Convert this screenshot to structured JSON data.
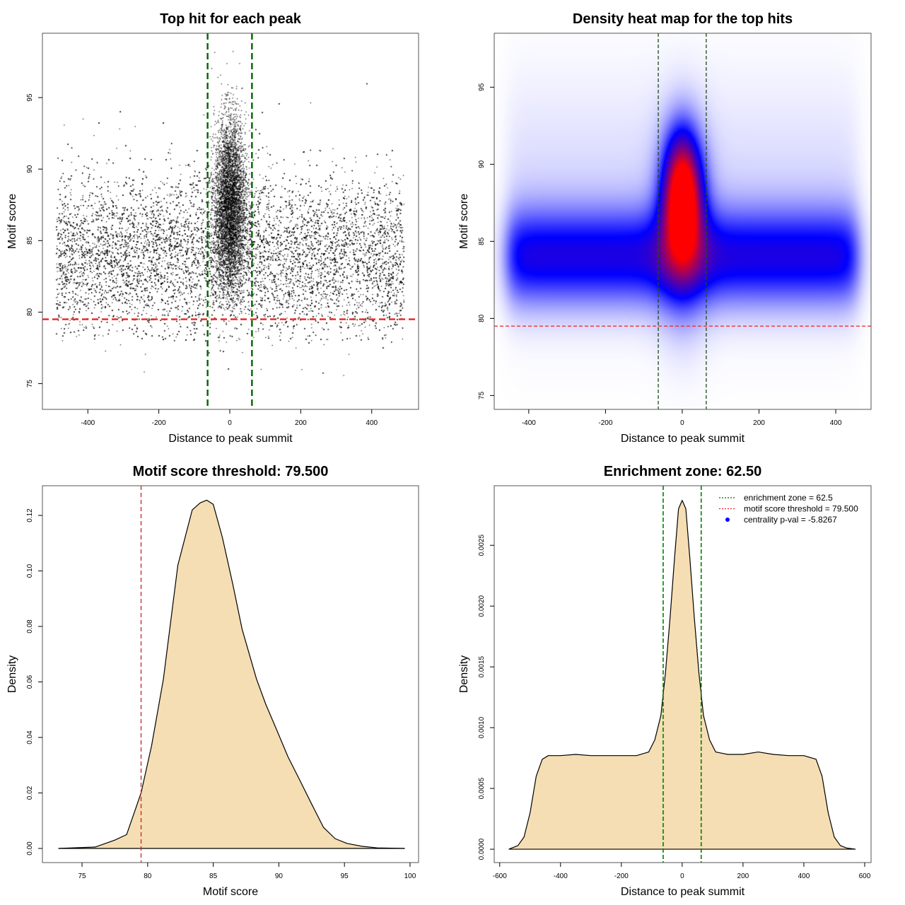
{
  "chart_data": [
    {
      "type": "scatter",
      "title": "Top hit for each peak",
      "xlabel": "Distance to peak summit",
      "ylabel": "Motif score",
      "xlim": [
        -528,
        532
      ],
      "ylim": [
        73.2,
        99.5
      ],
      "xticks": [
        "-400",
        "-200",
        "0",
        "200",
        "400"
      ],
      "xtick_values": [
        -400,
        -200,
        0,
        200,
        400
      ],
      "yticks": [
        "75",
        "80",
        "85",
        "90",
        "95"
      ],
      "ytick_values": [
        75,
        80,
        85,
        90,
        95
      ],
      "vlines": [
        -62.5,
        62.5
      ],
      "hline": 79.5,
      "point_distribution": {
        "background": {
          "n": 16000,
          "x_uniform": [
            -490,
            490
          ],
          "y_mean": 84,
          "y_sd": 2.8,
          "y_min": 75
        },
        "central": {
          "n": 5000,
          "x_mean": 0,
          "x_sd": 22,
          "y_mean": 87.5,
          "y_sd": 3.0
        }
      },
      "colors": {
        "points": "#000000",
        "vlines": "#006400",
        "hline": "#ee2222"
      }
    },
    {
      "type": "heatmap",
      "title": "Density heat map for the top hits",
      "xlabel": "Distance to peak summit",
      "ylabel": "Motif score",
      "xlim": [
        -490,
        492
      ],
      "ylim": [
        74.1,
        98.5
      ],
      "xticks": [
        "-400",
        "-200",
        "0",
        "200",
        "400"
      ],
      "xtick_values": [
        -400,
        -200,
        0,
        200,
        400
      ],
      "yticks": [
        "75",
        "80",
        "85",
        "90",
        "95"
      ],
      "ytick_values": [
        75,
        80,
        85,
        90,
        95
      ],
      "vlines": [
        -62.5,
        62.5
      ],
      "hline": 79.5,
      "colormap": [
        "#ffffff",
        "#0000ff",
        "#ff0000"
      ],
      "colors": {
        "vlines": "#1a4d1a",
        "hline": "#ee2222"
      }
    },
    {
      "type": "area",
      "title": "Motif score threshold: 79.500",
      "xlabel": "Motif score",
      "ylabel": "Density",
      "xlim": [
        71.98,
        100.65
      ],
      "ylim": [
        -0.0051,
        0.1307
      ],
      "xticks": [
        "75",
        "80",
        "85",
        "90",
        "95",
        "100"
      ],
      "xtick_values": [
        75,
        80,
        85,
        90,
        95,
        100
      ],
      "yticks": [
        "0.00",
        "0.02",
        "0.04",
        "0.06",
        "0.08",
        "0.10",
        "0.12"
      ],
      "ytick_values": [
        0,
        0.02,
        0.04,
        0.06,
        0.08,
        0.1,
        0.12
      ],
      "x": [
        73.2,
        76,
        77.5,
        78.4,
        79.5,
        80.3,
        81.2,
        82.3,
        83.4,
        84.0,
        84.5,
        85.0,
        85.7,
        86.5,
        87.2,
        88.3,
        89.0,
        89.9,
        90.7,
        91.5,
        92.5,
        93.4,
        94.3,
        95.2,
        96.3,
        97.5,
        99.6
      ],
      "y": [
        0,
        0.0005,
        0.003,
        0.005,
        0.02,
        0.037,
        0.061,
        0.102,
        0.122,
        0.1245,
        0.1255,
        0.124,
        0.112,
        0.095,
        0.079,
        0.061,
        0.052,
        0.042,
        0.033,
        0.0255,
        0.016,
        0.0076,
        0.0035,
        0.0018,
        0.0008,
        0.0002,
        0
      ],
      "vline": 79.5,
      "colors": {
        "fill": "#f5deb3",
        "line": "#000000",
        "vline": "#cc2222"
      }
    },
    {
      "type": "area",
      "title": "Enrichment zone: 62.50",
      "xlabel": "Distance to peak summit",
      "ylabel": "Density",
      "xlim": [
        -618,
        621
      ],
      "ylim": [
        -0.00011,
        0.00299
      ],
      "xticks": [
        "-600",
        "-400",
        "-200",
        "0",
        "200",
        "400",
        "600"
      ],
      "xtick_values": [
        -600,
        -400,
        -200,
        0,
        200,
        400,
        600
      ],
      "yticks": [
        "0.0000",
        "0.0005",
        "0.0010",
        "0.0015",
        "0.0020",
        "0.0025"
      ],
      "ytick_values": [
        0,
        0.0005,
        0.001,
        0.0015,
        0.002,
        0.0025
      ],
      "x": [
        -570,
        -540,
        -520,
        -500,
        -480,
        -460,
        -440,
        -400,
        -350,
        -300,
        -250,
        -200,
        -150,
        -110,
        -90,
        -70,
        -55,
        -40,
        -25,
        -12,
        0,
        12,
        25,
        40,
        55,
        70,
        90,
        110,
        150,
        200,
        250,
        300,
        350,
        400,
        440,
        460,
        480,
        500,
        520,
        540,
        570
      ],
      "y": [
        0,
        3e-05,
        0.0001,
        0.0003,
        0.0006,
        0.00074,
        0.00077,
        0.00077,
        0.00078,
        0.00077,
        0.00077,
        0.00077,
        0.00077,
        0.0008,
        0.0009,
        0.0011,
        0.00145,
        0.0019,
        0.0024,
        0.0028,
        0.00287,
        0.0028,
        0.0024,
        0.0019,
        0.00145,
        0.0011,
        0.0009,
        0.0008,
        0.00078,
        0.00078,
        0.0008,
        0.00078,
        0.00077,
        0.00077,
        0.00074,
        0.0006,
        0.0003,
        0.0001,
        3e-05,
        1e-05,
        0
      ],
      "vlines": [
        -62.5,
        62.5
      ],
      "legend": {
        "position": "top-right",
        "entries": [
          "enrichment zone = 62.5",
          "motif score threshold = 79.500",
          "centrality p-val = -5.8267"
        ],
        "colors": [
          "#006400",
          "#ee2222",
          "#0000ff"
        ]
      },
      "colors": {
        "fill": "#f5deb3",
        "line": "#000000",
        "vlines": "#008000"
      }
    }
  ]
}
